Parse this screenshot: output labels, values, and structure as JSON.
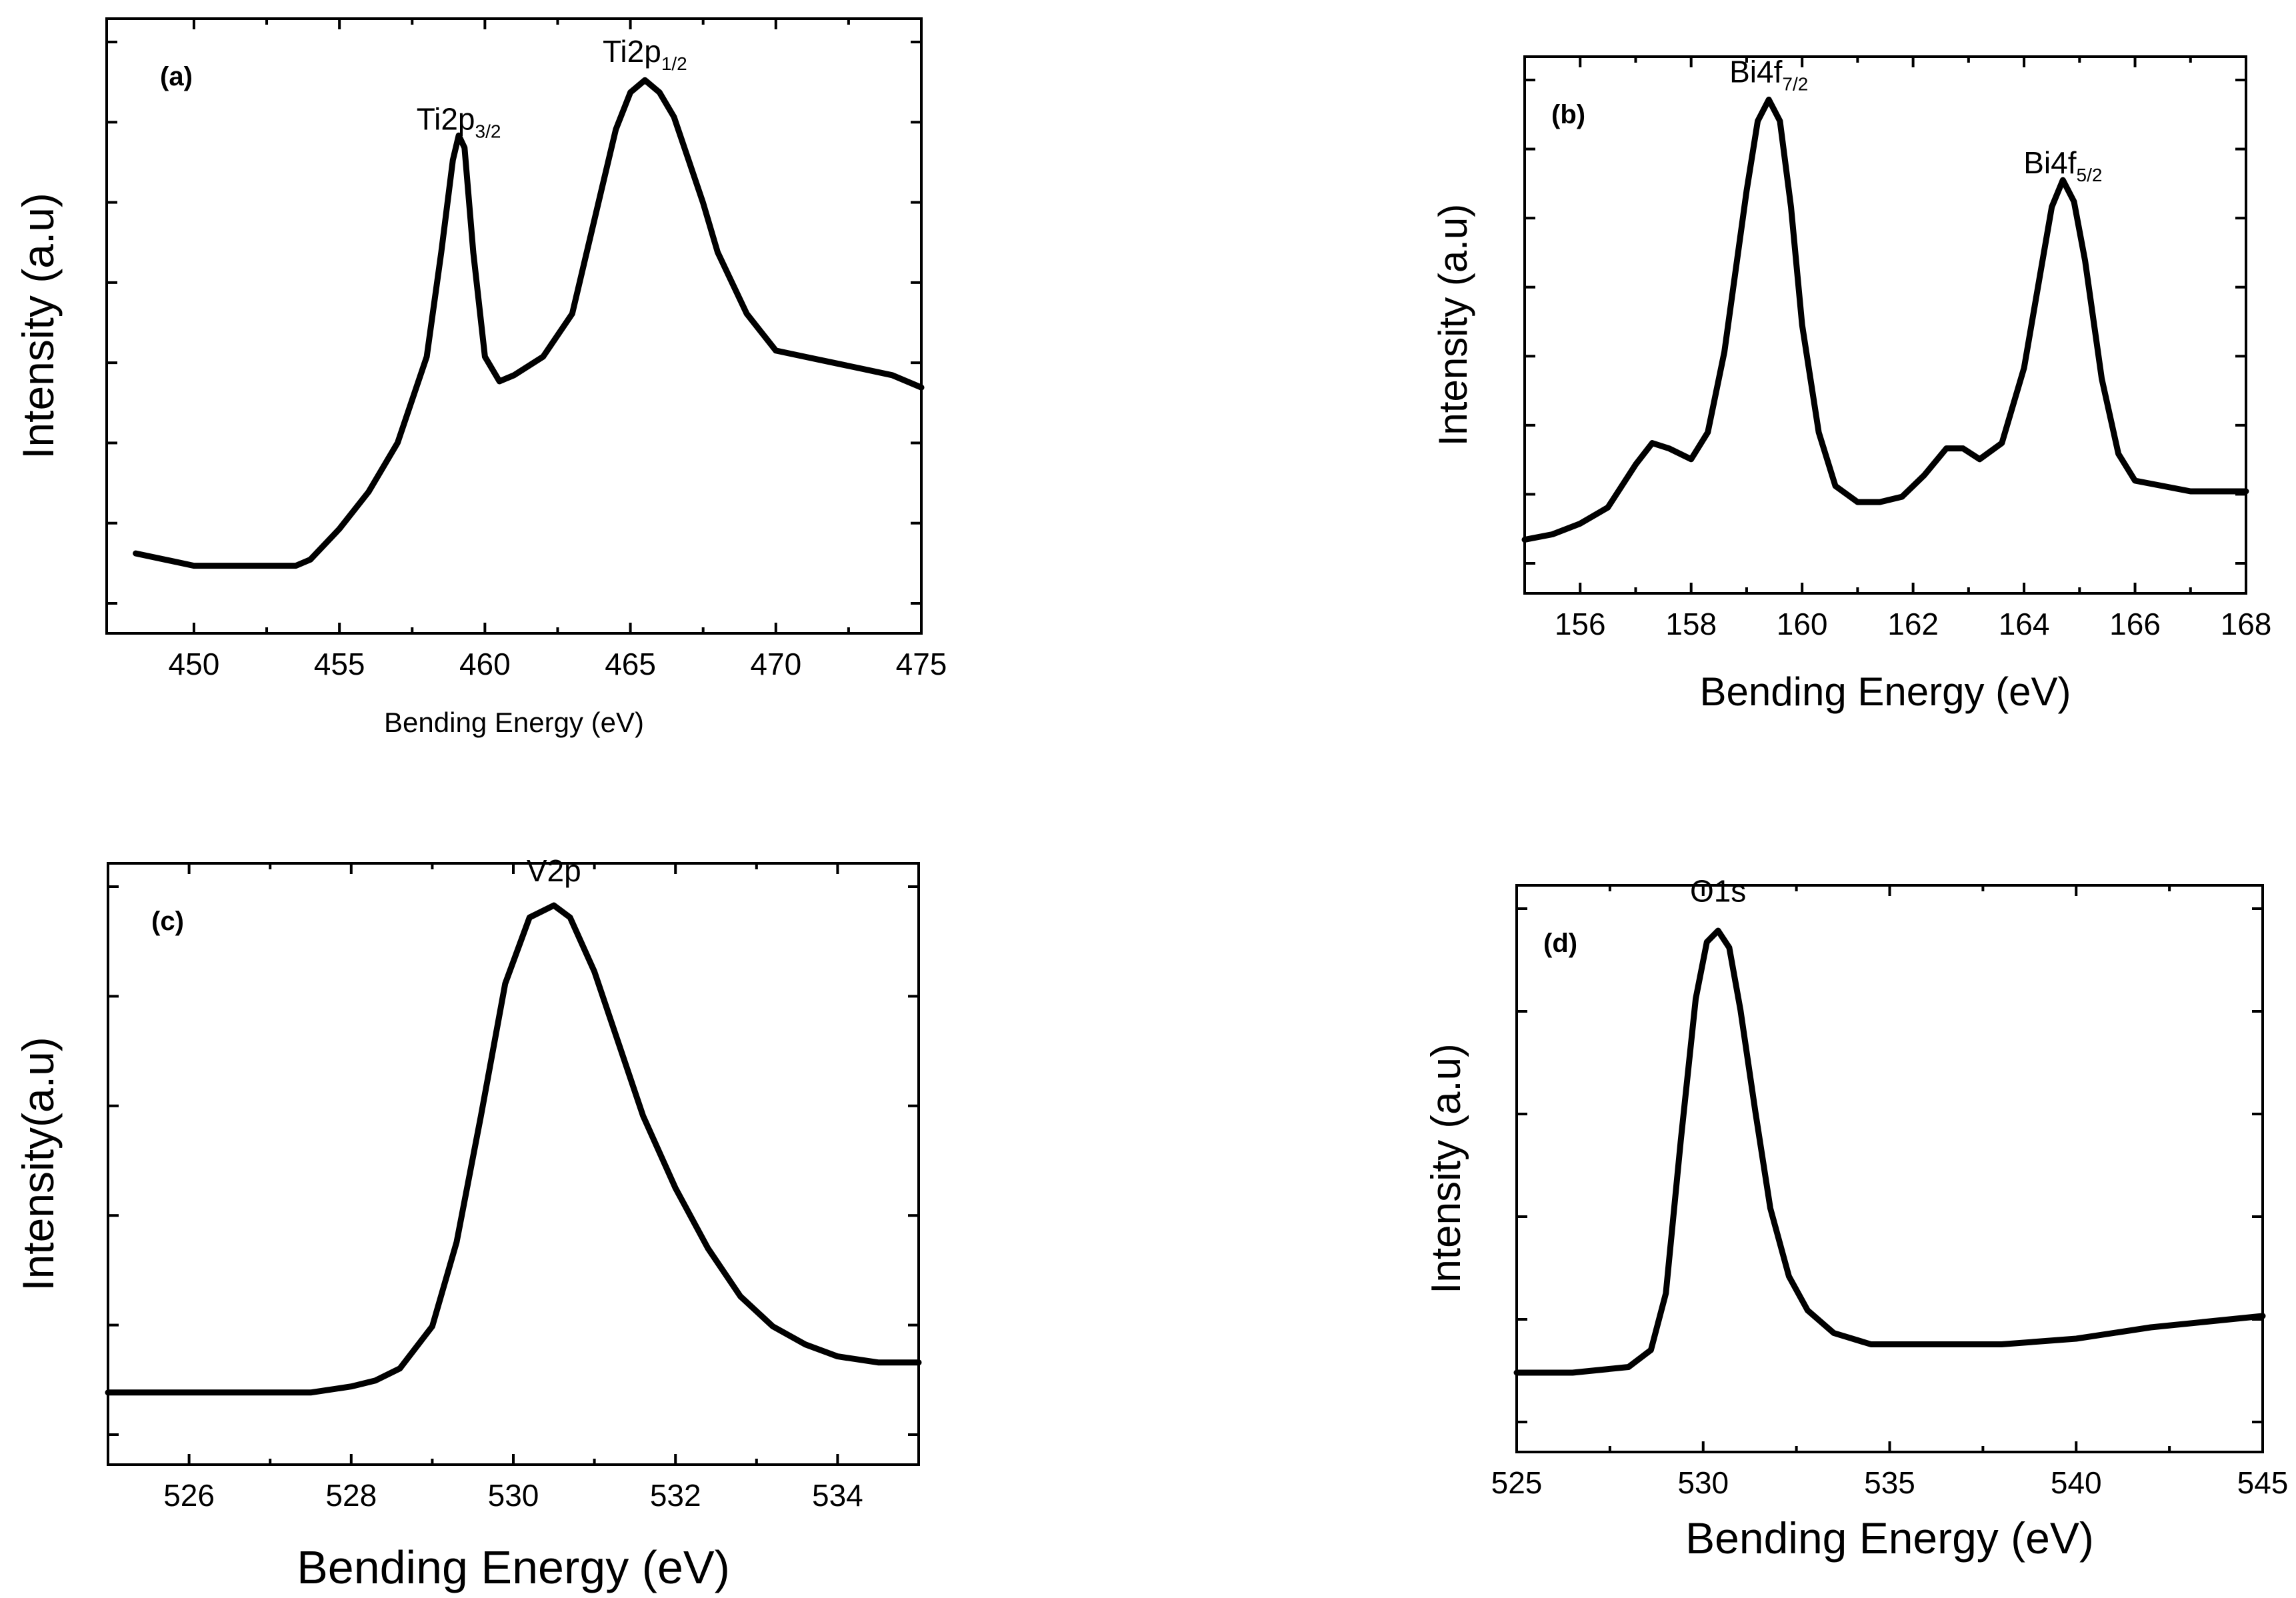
{
  "chart_data": [
    {
      "panel": "(a)",
      "type": "line",
      "title": "",
      "xlabel": "Bending Energy (eV)",
      "ylabel": "Intensity (a.u)",
      "xlim": [
        447,
        475
      ],
      "ylim": [
        0,
        100
      ],
      "xticks": [
        450,
        455,
        460,
        465,
        470,
        475
      ],
      "yticks_count": 8,
      "y_tick_labels_shown": false,
      "peak_labels": [
        {
          "base": "Ti2p",
          "sub": "3/2",
          "x": 459.1,
          "y": 80
        },
        {
          "base": "Ti2p",
          "sub": "1/2",
          "x": 465.5,
          "y": 91
        }
      ],
      "series": [
        {
          "name": "Ti2p",
          "x": [
            448.0,
            450.0,
            452.0,
            453.5,
            454.0,
            455.0,
            456.0,
            457.0,
            458.0,
            458.5,
            458.9,
            459.1,
            459.3,
            459.6,
            460.0,
            460.5,
            461.0,
            462.0,
            463.0,
            464.0,
            464.5,
            465.0,
            465.5,
            466.0,
            466.5,
            467.0,
            467.5,
            468.0,
            469.0,
            470.0,
            471.0,
            472.0,
            473.0,
            474.0,
            475.0
          ],
          "y": [
            13,
            11,
            11,
            11,
            12,
            17,
            23,
            31,
            45,
            62,
            77,
            81,
            79,
            62,
            45,
            41,
            42,
            45,
            52,
            72,
            82,
            88,
            90,
            88,
            84,
            77,
            70,
            62,
            52,
            46,
            45,
            44,
            43,
            42,
            40
          ]
        }
      ]
    },
    {
      "panel": "(b)",
      "type": "line",
      "title": "",
      "xlabel": "Bending Energy (eV)",
      "ylabel": "Intensity (a.u)",
      "xlim": [
        155,
        168
      ],
      "ylim": [
        0,
        100
      ],
      "xticks": [
        156,
        158,
        160,
        162,
        164,
        166,
        168
      ],
      "yticks_count": 8,
      "y_tick_labels_shown": false,
      "peak_labels": [
        {
          "base": "Bi4f",
          "sub": "7/2",
          "x": 159.4,
          "y": 93
        },
        {
          "base": "Bi4f",
          "sub": "5/2",
          "x": 164.7,
          "y": 76
        }
      ],
      "series": [
        {
          "name": "Bi4f",
          "x": [
            155.0,
            155.5,
            156.0,
            156.5,
            157.0,
            157.3,
            157.6,
            158.0,
            158.3,
            158.6,
            159.0,
            159.2,
            159.4,
            159.6,
            159.8,
            160.0,
            160.3,
            160.6,
            161.0,
            161.4,
            161.8,
            162.2,
            162.6,
            162.9,
            163.2,
            163.6,
            164.0,
            164.3,
            164.5,
            164.7,
            164.9,
            165.1,
            165.4,
            165.7,
            166.0,
            166.5,
            167.0,
            167.5,
            168.0
          ],
          "y": [
            10,
            11,
            13,
            16,
            24,
            28,
            27,
            25,
            30,
            45,
            75,
            88,
            92,
            88,
            72,
            50,
            30,
            20,
            17,
            17,
            18,
            22,
            27,
            27,
            25,
            28,
            42,
            60,
            72,
            77,
            73,
            62,
            40,
            26,
            21,
            20,
            19,
            19,
            19
          ]
        }
      ]
    },
    {
      "panel": "(c)",
      "type": "line",
      "title": "",
      "xlabel": "Bending Energy (eV)",
      "ylabel": "Intensity(a.u)",
      "xlim": [
        525,
        535
      ],
      "ylim": [
        0,
        100
      ],
      "xticks": [
        526,
        528,
        530,
        532,
        534
      ],
      "yticks_count": 6,
      "y_tick_labels_shown": false,
      "peak_labels": [
        {
          "base": "V2p",
          "sub": "",
          "x": 530.5,
          "y": 95
        }
      ],
      "series": [
        {
          "name": "V2p",
          "x": [
            525.0,
            526.0,
            527.0,
            527.5,
            528.0,
            528.3,
            528.6,
            529.0,
            529.3,
            529.6,
            529.9,
            530.2,
            530.5,
            530.7,
            531.0,
            531.3,
            531.6,
            532.0,
            532.4,
            532.8,
            533.2,
            533.6,
            534.0,
            534.5,
            535.0
          ],
          "y": [
            12,
            12,
            12,
            12,
            13,
            14,
            16,
            23,
            37,
            58,
            80,
            91,
            93,
            91,
            82,
            70,
            58,
            46,
            36,
            28,
            23,
            20,
            18,
            17,
            17
          ]
        }
      ]
    },
    {
      "panel": "(d)",
      "type": "line",
      "title": "",
      "xlabel": "Bending Energy (eV)",
      "ylabel": "Intensity (a.u)",
      "xlim": [
        525,
        545
      ],
      "ylim": [
        0,
        100
      ],
      "xticks": [
        525,
        530,
        535,
        540,
        545
      ],
      "yticks_count": 6,
      "y_tick_labels_shown": false,
      "peak_labels": [
        {
          "base": "O1s",
          "sub": "",
          "x": 530.4,
          "y": 95
        }
      ],
      "series": [
        {
          "name": "O1s",
          "x": [
            525.0,
            526.5,
            528.0,
            528.6,
            529.0,
            529.4,
            529.8,
            530.1,
            530.4,
            530.7,
            531.0,
            531.4,
            531.8,
            532.3,
            532.8,
            533.5,
            534.5,
            536.0,
            538.0,
            540.0,
            542.0,
            545.0
          ],
          "y": [
            14,
            14,
            15,
            18,
            28,
            55,
            80,
            90,
            92,
            89,
            78,
            60,
            43,
            31,
            25,
            21,
            19,
            19,
            19,
            20,
            22,
            24
          ]
        }
      ]
    }
  ]
}
